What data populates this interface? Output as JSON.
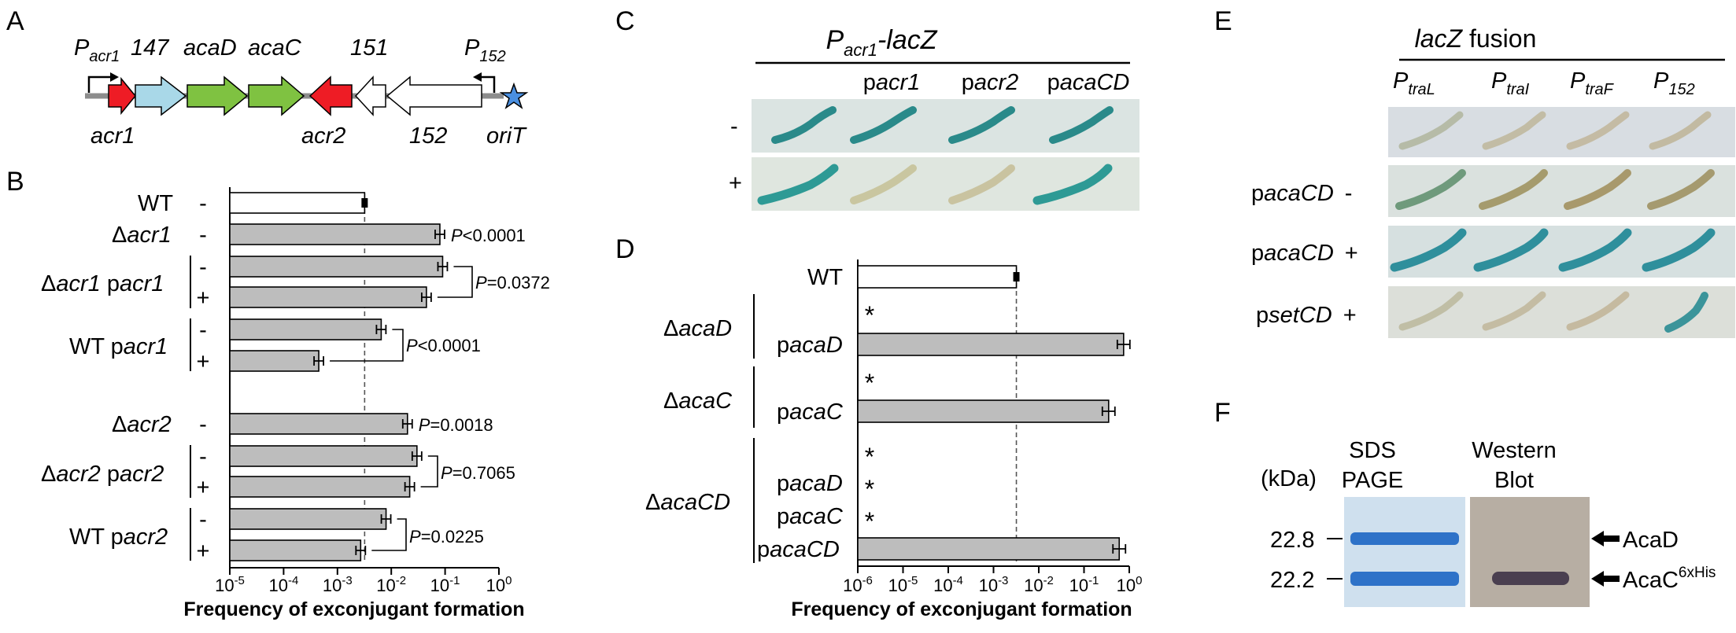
{
  "panel_letters": {
    "a": "A",
    "b": "B",
    "c": "C",
    "d": "D",
    "e": "E",
    "f": "F"
  },
  "panel_a": {
    "promoter_acr1": {
      "p": "P",
      "sub": "acr1"
    },
    "promoter_152": {
      "p": "P",
      "sub": "152"
    },
    "top_labels": {
      "g147": "147",
      "acaD": "acaD",
      "acaC": "acaC",
      "g151": "151"
    },
    "bottom_labels": {
      "acr1": "acr1",
      "acr2": "acr2",
      "g152": "152",
      "oriT": "oriT"
    },
    "colors": {
      "acr": "#ee1c25",
      "g147": "#a9d8e8",
      "aca": "#7fc241",
      "other": "#ffffff",
      "backbone": "#8c8c8c",
      "star": "#4a8fe0"
    }
  },
  "panel_b": {
    "xlabel": "Frequency of exconjugant formation",
    "tick_base": "10",
    "tick_exps": [
      "-5",
      "-4",
      "-3",
      "-2",
      "-1",
      "0"
    ],
    "row_signs": [
      "-",
      "-",
      "-",
      "+",
      "-",
      "+",
      "-",
      "-",
      "+",
      "-",
      "+"
    ],
    "strain_labels": {
      "wt": "WT",
      "dacr1": {
        "delta": "Δ",
        "gene": "acr1"
      },
      "dacr1_pacr1": {
        "delta": "Δ",
        "gene": "acr1",
        "plasmid": " p",
        "pgene": "acr1"
      },
      "wt_pacr1": {
        "wt": "WT p",
        "pgene": "acr1"
      },
      "dacr2": {
        "delta": "Δ",
        "gene": "acr2"
      },
      "dacr2_pacr2": {
        "delta": "Δ",
        "gene": "acr2",
        "plasmid": " p",
        "pgene": "acr2"
      },
      "wt_pacr2": {
        "wt": "WT p",
        "pgene": "acr2"
      }
    },
    "pvalues": [
      {
        "p": "P",
        "text": "<0.0001"
      },
      {
        "p": "P",
        "text": "=0.0372"
      },
      {
        "p": "P",
        "text": "<0.0001"
      },
      {
        "p": "P",
        "text": "=0.0018"
      },
      {
        "p": "P",
        "text": "=0.7065"
      },
      {
        "p": "P",
        "text": "=0.0225"
      }
    ]
  },
  "panel_c": {
    "title": {
      "p": "P",
      "sub": "acr1",
      "suffix": "-lacZ"
    },
    "columns": [
      {
        "p": "p",
        "g": "acr1"
      },
      {
        "p": "p",
        "g": "acr2"
      },
      {
        "p": "p",
        "g": "acaCD"
      }
    ],
    "row_signs": [
      "-",
      "+"
    ]
  },
  "panel_d": {
    "xlabel": "Frequency of exconjugant formation",
    "tick_base": "10",
    "tick_exps": [
      "-6",
      "-5",
      "-4",
      "-3",
      "-2",
      "-1",
      "0"
    ],
    "wt": "WT",
    "groups": [
      {
        "delta": "Δ",
        "gene": "acaD"
      },
      {
        "delta": "Δ",
        "gene": "acaC"
      },
      {
        "delta": "Δ",
        "gene": "acaCD"
      }
    ],
    "plasmids": [
      {
        "p": "p",
        "g": "acaD"
      },
      {
        "p": "p",
        "g": "acaC"
      },
      {
        "p": "p",
        "g": "acaD"
      },
      {
        "p": "p",
        "g": "acaC"
      },
      {
        "p": "p",
        "g": "acaCD"
      }
    ],
    "star": "*"
  },
  "panel_e": {
    "title": {
      "gene": "lacZ",
      "suffix": " fusion"
    },
    "columns": [
      {
        "p": "P",
        "sub": "traL"
      },
      {
        "p": "P",
        "sub": "traI"
      },
      {
        "p": "P",
        "sub": "traF"
      },
      {
        "p": "P",
        "sub": "152"
      }
    ],
    "rows": [
      {
        "p": "p",
        "g": "acaCD",
        "sign": "-"
      },
      {
        "p": "p",
        "g": "acaCD",
        "sign": "+"
      },
      {
        "p": "p",
        "g": "setCD",
        "sign": "+"
      }
    ]
  },
  "panel_f": {
    "unit": "(kDa)",
    "lane1": [
      "SDS",
      "PAGE"
    ],
    "lane2": [
      "Western",
      "Blot"
    ],
    "markers": [
      "22.8",
      "22.2"
    ],
    "band_labels": {
      "acad": "AcaD",
      "acac": "AcaC",
      "acac_sup": "6xHis"
    }
  },
  "chart_data": [
    {
      "type": "bar",
      "orientation": "horizontal",
      "xscale": "log",
      "xlim": [
        1e-05,
        1
      ],
      "xlabel": "Frequency of exconjugant formation",
      "reference_line": 0.0032,
      "categories": [
        "WT -",
        "Δacr1 -",
        "Δacr1 pacr1 -",
        "Δacr1 pacr1 +",
        "WT pacr1 -",
        "WT pacr1 +",
        "Δacr2 -",
        "Δacr2 pacr2 -",
        "Δacr2 pacr2 +",
        "WT pacr2 -",
        "WT pacr2 +"
      ],
      "values": [
        0.0032,
        0.08,
        0.09,
        0.045,
        0.0065,
        0.00045,
        0.02,
        0.03,
        0.022,
        0.008,
        0.0027
      ],
      "annotations": [
        "P<0.0001",
        "P=0.0372",
        "P<0.0001",
        "P=0.0018",
        "P=0.7065",
        "P=0.0225"
      ]
    },
    {
      "type": "bar",
      "orientation": "horizontal",
      "xscale": "log",
      "xlim": [
        1e-06,
        1
      ],
      "xlabel": "Frequency of exconjugant formation",
      "reference_line": 0.0032,
      "categories": [
        "WT",
        "ΔacaD",
        "ΔacaD pacaD",
        "ΔacaC",
        "ΔacaC pacaC",
        "ΔacaCD",
        "ΔacaCD pacaD",
        "ΔacaCD pacaC",
        "ΔacaCD pacaCD"
      ],
      "values": [
        0.0032,
        null,
        0.75,
        null,
        0.35,
        null,
        null,
        null,
        0.6
      ],
      "annotations": [
        "*",
        "*",
        "*",
        "*",
        "*"
      ]
    }
  ]
}
